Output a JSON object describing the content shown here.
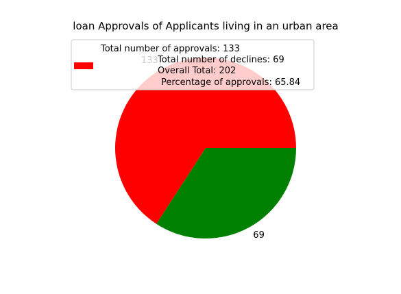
{
  "chart_data": {
    "type": "pie",
    "title": "loan Approvals of Applicants living in an urban area",
    "slices": [
      {
        "label": "133",
        "value": 133,
        "color": "#ff0000"
      },
      {
        "label": "69",
        "value": 69,
        "color": "#008000"
      }
    ],
    "legend": {
      "placement": "top",
      "entries": [
        {
          "color": "#ff0000",
          "lines": [
            "Total number of approvals: 133",
            "Total number of declines: 69",
            "Overall Total: 202",
            "Percentage of approvals: 65.84"
          ]
        }
      ]
    }
  }
}
